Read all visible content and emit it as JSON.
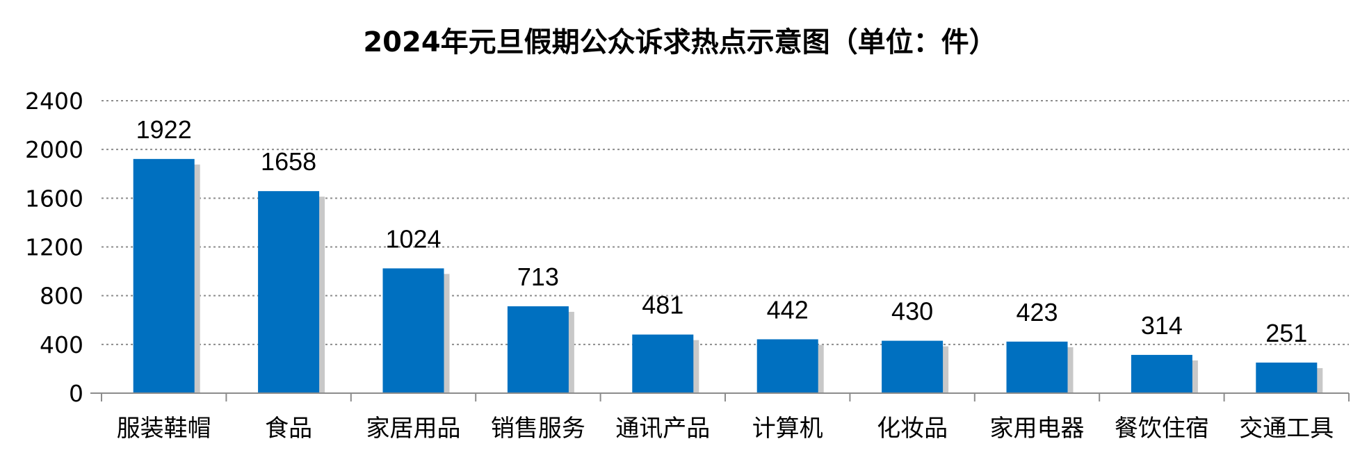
{
  "chart_data": {
    "type": "bar",
    "title": "2024年元旦假期公众诉求热点示意图（单位：件）",
    "categories": [
      "服装鞋帽",
      "食品",
      "家居用品",
      "销售服务",
      "通讯产品",
      "计算机",
      "化妆品",
      "家用电器",
      "餐饮住宿",
      "交通工具"
    ],
    "values": [
      1922,
      1658,
      1024,
      713,
      481,
      442,
      430,
      423,
      314,
      251
    ],
    "ylim": [
      0,
      2400
    ],
    "yticks": [
      0,
      400,
      800,
      1200,
      1600,
      2000,
      2400
    ],
    "grid": true,
    "legend": "none",
    "bar_color": "#0070c0",
    "shadow_color": "#c8c8c8"
  }
}
